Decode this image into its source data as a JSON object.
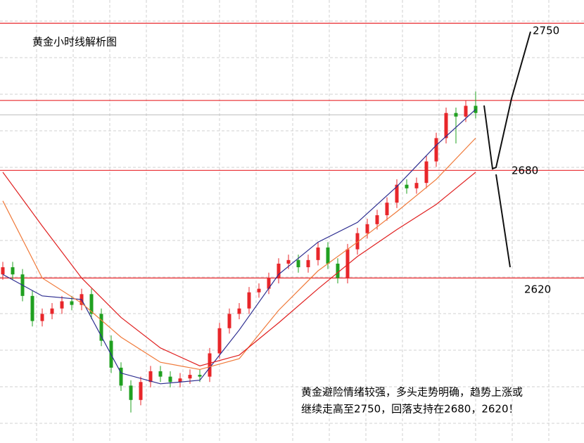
{
  "chart_data": {
    "type": "candlestick",
    "title": "黄金小时线解析图",
    "annotation": [
      "黄金避险情绪较强，多头走势明确，趋势上涨或",
      "继续走高至2750，回落支持在2680，2620！"
    ],
    "ylim": [
      2528,
      2775
    ],
    "open": [
      2622,
      2626,
      2622,
      2610,
      2596,
      2600,
      2603,
      2607,
      2605,
      2611,
      2600,
      2585,
      2570,
      2560,
      2552,
      2562,
      2568,
      2565,
      2562,
      2564,
      2566,
      2565,
      2578,
      2592,
      2600,
      2603,
      2612,
      2614,
      2620,
      2628,
      2630,
      2626,
      2630,
      2637,
      2628,
      2620,
      2636,
      2645,
      2650,
      2655,
      2662,
      2672,
      2670,
      2673,
      2685,
      2698,
      2712,
      2710,
      2716
    ],
    "high": [
      2629,
      2629,
      2625,
      2613,
      2603,
      2606,
      2610,
      2610,
      2614,
      2614,
      2603,
      2588,
      2573,
      2563,
      2565,
      2571,
      2571,
      2568,
      2567,
      2569,
      2569,
      2581,
      2595,
      2603,
      2606,
      2615,
      2617,
      2623,
      2631,
      2633,
      2633,
      2633,
      2640,
      2640,
      2631,
      2639,
      2648,
      2653,
      2658,
      2665,
      2675,
      2675,
      2676,
      2688,
      2701,
      2715,
      2715,
      2719,
      2724
    ],
    "low": [
      2619,
      2619,
      2607,
      2593,
      2593,
      2597,
      2600,
      2602,
      2602,
      2597,
      2582,
      2567,
      2557,
      2545,
      2549,
      2559,
      2562,
      2559,
      2559,
      2561,
      2562,
      2562,
      2575,
      2589,
      2597,
      2600,
      2609,
      2611,
      2617,
      2625,
      2623,
      2623,
      2627,
      2625,
      2617,
      2617,
      2633,
      2642,
      2647,
      2652,
      2659,
      2667,
      2667,
      2670,
      2682,
      2695,
      2695,
      2707,
      2709
    ],
    "close": [
      2626,
      2622,
      2610,
      2596,
      2600,
      2603,
      2607,
      2605,
      2611,
      2600,
      2585,
      2570,
      2560,
      2552,
      2562,
      2568,
      2565,
      2562,
      2564,
      2566,
      2565,
      2578,
      2592,
      2600,
      2603,
      2612,
      2614,
      2620,
      2628,
      2630,
      2626,
      2630,
      2637,
      2628,
      2620,
      2636,
      2645,
      2650,
      2655,
      2662,
      2672,
      2670,
      2673,
      2685,
      2698,
      2712,
      2710,
      2716,
      2712
    ],
    "up_color": "#e8262a",
    "down_color": "#20a020",
    "ma_x": [
      0,
      4,
      8,
      12,
      16,
      20,
      24,
      28,
      32,
      36,
      40,
      44,
      48
    ],
    "series": [
      {
        "color": "#2b2b8f",
        "values": [
          2622,
          2610,
          2608,
          2567,
          2561,
          2563,
          2591,
          2622,
          2640,
          2651,
          2671,
          2694,
          2714
        ]
      },
      {
        "color": "#f07a3a",
        "values": [
          2663,
          2620,
          2606,
          2587,
          2573,
          2569,
          2575,
          2602,
          2624,
          2640,
          2657,
          2675,
          2698
        ]
      },
      {
        "color": "#e02020",
        "values": [
          2679,
          2649,
          2620,
          2598,
          2581,
          2571,
          2577,
          2595,
          2614,
          2632,
          2647,
          2661,
          2679
        ]
      }
    ],
    "hlines": [
      2762,
      2719,
      2680,
      2620
    ],
    "hline_color": "#e8262a",
    "price_line": 2711,
    "targets": [
      2750,
      2680,
      2620
    ]
  }
}
